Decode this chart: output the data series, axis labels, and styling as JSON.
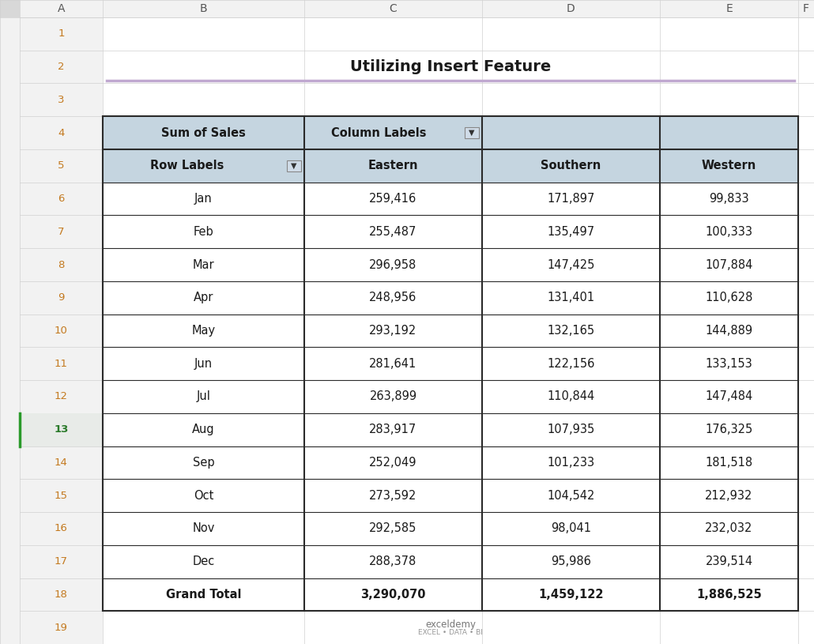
{
  "title": "Utilizing Insert Feature",
  "months": [
    "Jan",
    "Feb",
    "Mar",
    "Apr",
    "May",
    "Jun",
    "Jul",
    "Aug",
    "Sep",
    "Oct",
    "Nov",
    "Dec"
  ],
  "eastern": [
    259416,
    255487,
    296958,
    248956,
    293192,
    281641,
    263899,
    283917,
    252049,
    273592,
    292585,
    288378
  ],
  "southern": [
    171897,
    135497,
    147425,
    131401,
    132165,
    122156,
    110844,
    107935,
    101233,
    104542,
    98041,
    95986
  ],
  "western": [
    99833,
    100333,
    107884,
    110628,
    144889,
    133153,
    147484,
    176325,
    181518,
    212932,
    232032,
    239514
  ],
  "grand_total_eastern": "3,290,070",
  "grand_total_southern": "1,459,122",
  "grand_total_western": "1,886,525",
  "header_bg": "#c5d5e0",
  "row_bg": "#ffffff",
  "border_color": "#2a2a2a",
  "spreadsheet_bg": "#f2f2f2",
  "row_header_bg": "#f2f2f2",
  "col_header_bg": "#f2f2f2",
  "grid_color": "#d0d0d0",
  "row_num_color": "#c47a20",
  "col_letter_color": "#555555",
  "title_color": "#1a1a1a",
  "title_line_color": "#c0a8d0",
  "corner_color": "#d8d8d8"
}
